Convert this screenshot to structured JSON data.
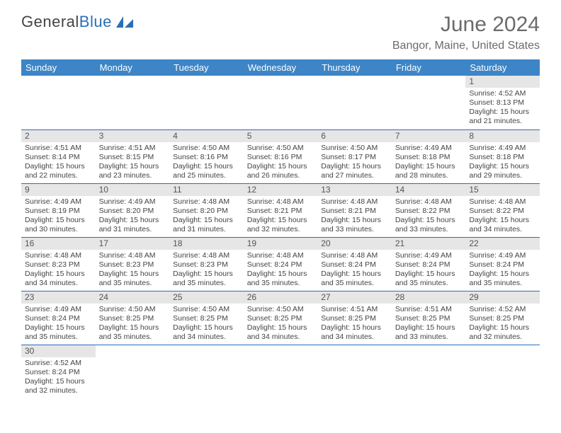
{
  "logo": {
    "text_a": "General",
    "text_b": "Blue"
  },
  "title": "June 2024",
  "location": "Bangor, Maine, United States",
  "colors": {
    "header_bg": "#3d85c6",
    "header_text": "#ffffff",
    "border": "#2a6fb5",
    "date_bar_bg": "#e6e6e6",
    "body_text": "#444444",
    "title_text": "#6b6b6b"
  },
  "day_headers": [
    "Sunday",
    "Monday",
    "Tuesday",
    "Wednesday",
    "Thursday",
    "Friday",
    "Saturday"
  ],
  "weeks": [
    [
      null,
      null,
      null,
      null,
      null,
      null,
      {
        "d": "1",
        "sr": "Sunrise: 4:52 AM",
        "ss": "Sunset: 8:13 PM",
        "dl1": "Daylight: 15 hours",
        "dl2": "and 21 minutes."
      }
    ],
    [
      {
        "d": "2",
        "sr": "Sunrise: 4:51 AM",
        "ss": "Sunset: 8:14 PM",
        "dl1": "Daylight: 15 hours",
        "dl2": "and 22 minutes."
      },
      {
        "d": "3",
        "sr": "Sunrise: 4:51 AM",
        "ss": "Sunset: 8:15 PM",
        "dl1": "Daylight: 15 hours",
        "dl2": "and 23 minutes."
      },
      {
        "d": "4",
        "sr": "Sunrise: 4:50 AM",
        "ss": "Sunset: 8:16 PM",
        "dl1": "Daylight: 15 hours",
        "dl2": "and 25 minutes."
      },
      {
        "d": "5",
        "sr": "Sunrise: 4:50 AM",
        "ss": "Sunset: 8:16 PM",
        "dl1": "Daylight: 15 hours",
        "dl2": "and 26 minutes."
      },
      {
        "d": "6",
        "sr": "Sunrise: 4:50 AM",
        "ss": "Sunset: 8:17 PM",
        "dl1": "Daylight: 15 hours",
        "dl2": "and 27 minutes."
      },
      {
        "d": "7",
        "sr": "Sunrise: 4:49 AM",
        "ss": "Sunset: 8:18 PM",
        "dl1": "Daylight: 15 hours",
        "dl2": "and 28 minutes."
      },
      {
        "d": "8",
        "sr": "Sunrise: 4:49 AM",
        "ss": "Sunset: 8:18 PM",
        "dl1": "Daylight: 15 hours",
        "dl2": "and 29 minutes."
      }
    ],
    [
      {
        "d": "9",
        "sr": "Sunrise: 4:49 AM",
        "ss": "Sunset: 8:19 PM",
        "dl1": "Daylight: 15 hours",
        "dl2": "and 30 minutes."
      },
      {
        "d": "10",
        "sr": "Sunrise: 4:49 AM",
        "ss": "Sunset: 8:20 PM",
        "dl1": "Daylight: 15 hours",
        "dl2": "and 31 minutes."
      },
      {
        "d": "11",
        "sr": "Sunrise: 4:48 AM",
        "ss": "Sunset: 8:20 PM",
        "dl1": "Daylight: 15 hours",
        "dl2": "and 31 minutes."
      },
      {
        "d": "12",
        "sr": "Sunrise: 4:48 AM",
        "ss": "Sunset: 8:21 PM",
        "dl1": "Daylight: 15 hours",
        "dl2": "and 32 minutes."
      },
      {
        "d": "13",
        "sr": "Sunrise: 4:48 AM",
        "ss": "Sunset: 8:21 PM",
        "dl1": "Daylight: 15 hours",
        "dl2": "and 33 minutes."
      },
      {
        "d": "14",
        "sr": "Sunrise: 4:48 AM",
        "ss": "Sunset: 8:22 PM",
        "dl1": "Daylight: 15 hours",
        "dl2": "and 33 minutes."
      },
      {
        "d": "15",
        "sr": "Sunrise: 4:48 AM",
        "ss": "Sunset: 8:22 PM",
        "dl1": "Daylight: 15 hours",
        "dl2": "and 34 minutes."
      }
    ],
    [
      {
        "d": "16",
        "sr": "Sunrise: 4:48 AM",
        "ss": "Sunset: 8:23 PM",
        "dl1": "Daylight: 15 hours",
        "dl2": "and 34 minutes."
      },
      {
        "d": "17",
        "sr": "Sunrise: 4:48 AM",
        "ss": "Sunset: 8:23 PM",
        "dl1": "Daylight: 15 hours",
        "dl2": "and 35 minutes."
      },
      {
        "d": "18",
        "sr": "Sunrise: 4:48 AM",
        "ss": "Sunset: 8:23 PM",
        "dl1": "Daylight: 15 hours",
        "dl2": "and 35 minutes."
      },
      {
        "d": "19",
        "sr": "Sunrise: 4:48 AM",
        "ss": "Sunset: 8:24 PM",
        "dl1": "Daylight: 15 hours",
        "dl2": "and 35 minutes."
      },
      {
        "d": "20",
        "sr": "Sunrise: 4:48 AM",
        "ss": "Sunset: 8:24 PM",
        "dl1": "Daylight: 15 hours",
        "dl2": "and 35 minutes."
      },
      {
        "d": "21",
        "sr": "Sunrise: 4:49 AM",
        "ss": "Sunset: 8:24 PM",
        "dl1": "Daylight: 15 hours",
        "dl2": "and 35 minutes."
      },
      {
        "d": "22",
        "sr": "Sunrise: 4:49 AM",
        "ss": "Sunset: 8:24 PM",
        "dl1": "Daylight: 15 hours",
        "dl2": "and 35 minutes."
      }
    ],
    [
      {
        "d": "23",
        "sr": "Sunrise: 4:49 AM",
        "ss": "Sunset: 8:24 PM",
        "dl1": "Daylight: 15 hours",
        "dl2": "and 35 minutes."
      },
      {
        "d": "24",
        "sr": "Sunrise: 4:50 AM",
        "ss": "Sunset: 8:25 PM",
        "dl1": "Daylight: 15 hours",
        "dl2": "and 35 minutes."
      },
      {
        "d": "25",
        "sr": "Sunrise: 4:50 AM",
        "ss": "Sunset: 8:25 PM",
        "dl1": "Daylight: 15 hours",
        "dl2": "and 34 minutes."
      },
      {
        "d": "26",
        "sr": "Sunrise: 4:50 AM",
        "ss": "Sunset: 8:25 PM",
        "dl1": "Daylight: 15 hours",
        "dl2": "and 34 minutes."
      },
      {
        "d": "27",
        "sr": "Sunrise: 4:51 AM",
        "ss": "Sunset: 8:25 PM",
        "dl1": "Daylight: 15 hours",
        "dl2": "and 34 minutes."
      },
      {
        "d": "28",
        "sr": "Sunrise: 4:51 AM",
        "ss": "Sunset: 8:25 PM",
        "dl1": "Daylight: 15 hours",
        "dl2": "and 33 minutes."
      },
      {
        "d": "29",
        "sr": "Sunrise: 4:52 AM",
        "ss": "Sunset: 8:25 PM",
        "dl1": "Daylight: 15 hours",
        "dl2": "and 32 minutes."
      }
    ],
    [
      {
        "d": "30",
        "sr": "Sunrise: 4:52 AM",
        "ss": "Sunset: 8:24 PM",
        "dl1": "Daylight: 15 hours",
        "dl2": "and 32 minutes."
      },
      null,
      null,
      null,
      null,
      null,
      null
    ]
  ]
}
